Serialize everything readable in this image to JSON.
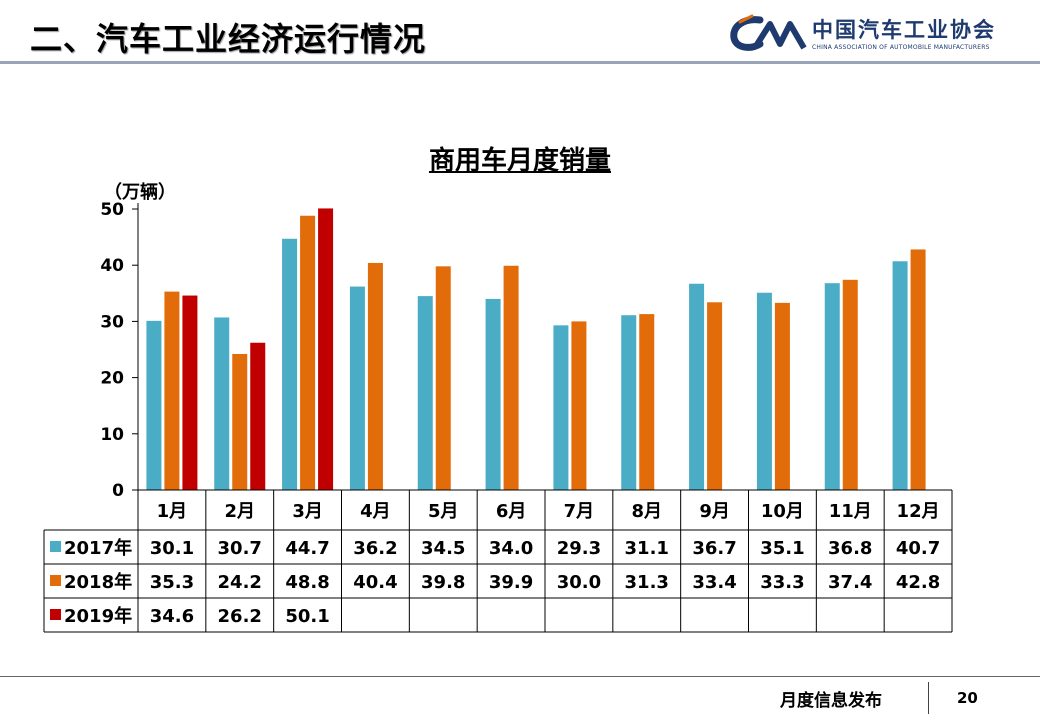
{
  "header": {
    "title": "二、汽车工业经济运行情况",
    "logo_cn": "中国汽车工业协会",
    "logo_en": "CHINA ASSOCIATION OF AUTOMOBILE MANUFACTURERS",
    "logo_mark_icon": "caam-logo-icon"
  },
  "chart_data": {
    "type": "bar",
    "title": "商用车月度销量",
    "ylabel": "（万辆）",
    "ylim": [
      0,
      50
    ],
    "yticks": [
      0,
      10,
      20,
      30,
      40,
      50
    ],
    "categories": [
      "1月",
      "2月",
      "3月",
      "4月",
      "5月",
      "6月",
      "7月",
      "8月",
      "9月",
      "10月",
      "11月",
      "12月"
    ],
    "series": [
      {
        "name": "2017年",
        "color": "#4bacc6",
        "values": [
          30.1,
          30.7,
          44.7,
          36.2,
          34.5,
          34.0,
          29.3,
          31.1,
          36.7,
          35.1,
          36.8,
          40.7
        ]
      },
      {
        "name": "2018年",
        "color": "#e36c0a",
        "values": [
          35.3,
          24.2,
          48.8,
          40.4,
          39.8,
          39.9,
          30.0,
          31.3,
          33.4,
          33.3,
          37.4,
          42.8
        ]
      },
      {
        "name": "2019年",
        "color": "#c00000",
        "values": [
          34.6,
          26.2,
          50.1,
          null,
          null,
          null,
          null,
          null,
          null,
          null,
          null,
          null
        ]
      }
    ],
    "grid": false,
    "legend": "data-table-left"
  },
  "footer": {
    "text": "月度信息发布",
    "page": "20"
  }
}
